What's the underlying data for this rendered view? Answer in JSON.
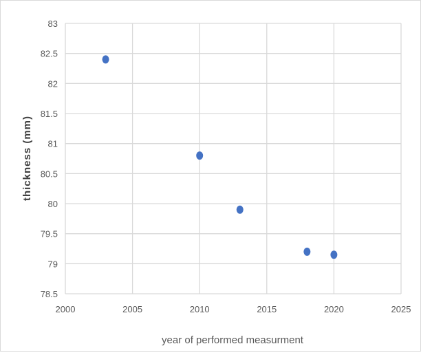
{
  "chart_data": {
    "type": "scatter",
    "title": "",
    "xlabel": "year of performed measurment",
    "ylabel": "thickness (mm)",
    "xlim": [
      2000,
      2025
    ],
    "ylim": [
      78.5,
      83
    ],
    "xticks": [
      2000,
      2005,
      2010,
      2015,
      2020,
      2025
    ],
    "xtick_labels": [
      "2000",
      "2005",
      "2010",
      "2015",
      "2020",
      "2025"
    ],
    "yticks": [
      78.5,
      79,
      79.5,
      80,
      80.5,
      81,
      81.5,
      82,
      82.5,
      83
    ],
    "ytick_labels": [
      "78.5",
      "79",
      "79.5",
      "80",
      "80.5",
      "81",
      "81.5",
      "82",
      "82.5",
      "83"
    ],
    "grid": true,
    "legend": "none",
    "series": [
      {
        "color": "#4472C4",
        "points": [
          {
            "x": 2003,
            "y": 82.4
          },
          {
            "x": 2010,
            "y": 80.8
          },
          {
            "x": 2013,
            "y": 79.9
          },
          {
            "x": 2018,
            "y": 79.2
          },
          {
            "x": 2020,
            "y": 79.15
          }
        ]
      }
    ]
  }
}
